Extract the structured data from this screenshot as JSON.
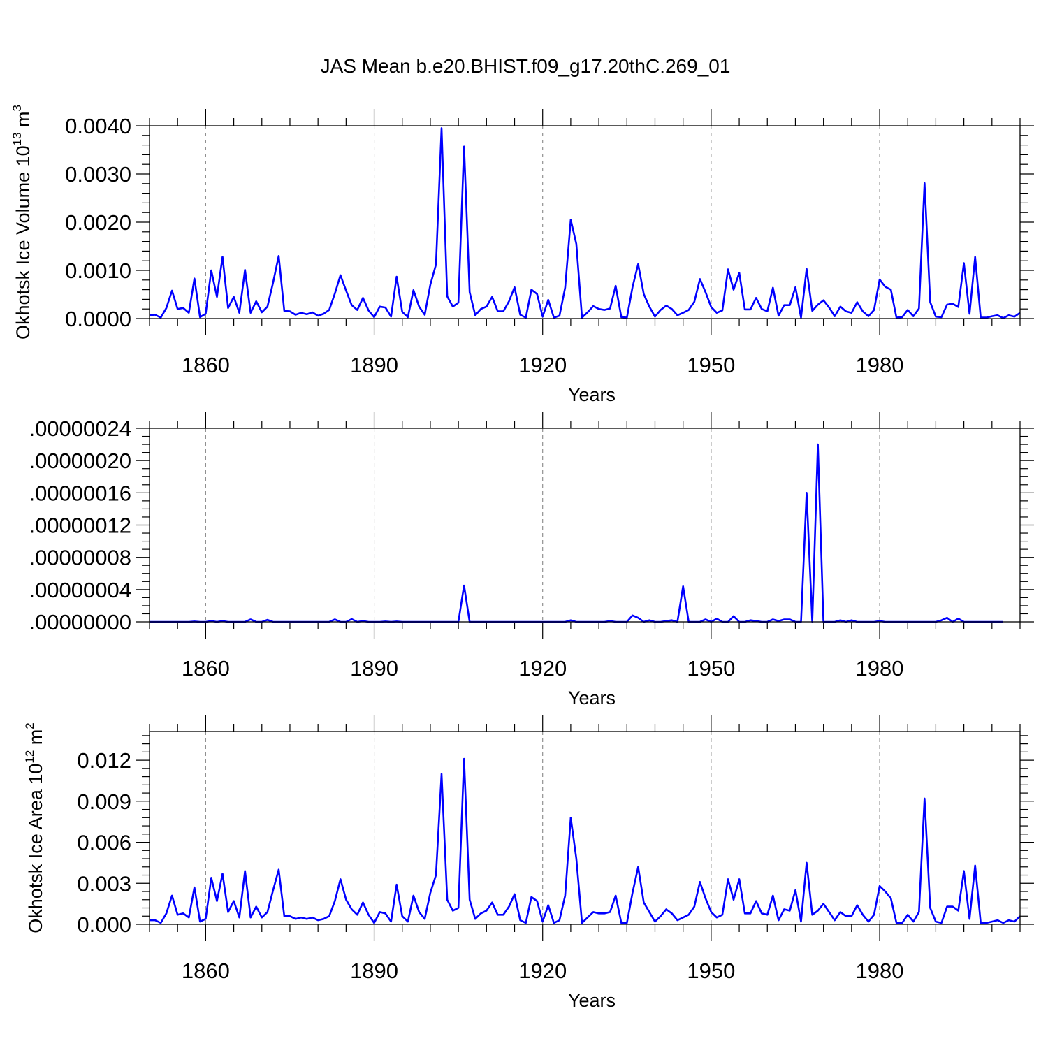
{
  "figure": {
    "title": "JAS Mean b.e20.BHIST.f09_g17.20thC.269_01"
  },
  "chart_data": [
    {
      "type": "line",
      "xlabel": "Years",
      "ylabel": "Okhotsk Ice Volume 10",
      "ylabel_sup": "13",
      "ylabel_unit": " m",
      "ylabel_unit_sup": "3",
      "xlim": [
        1850,
        2005
      ],
      "ylim": [
        0,
        0.004
      ],
      "x_ticks": [
        1860,
        1890,
        1920,
        1950,
        1980
      ],
      "y_ticks": [
        0,
        0.001,
        0.002,
        0.003,
        0.004
      ],
      "y_tick_labels": [
        "0.0000",
        "0.0010",
        "0.0020",
        "0.0030",
        "0.0040"
      ],
      "grid": "dashed vertical at major x ticks",
      "color": "#0000ff",
      "x_start": 1850,
      "values": [
        7e-05,
        8e-05,
        2e-05,
        0.00022,
        0.00058,
        0.0002,
        0.00022,
        0.00012,
        0.00083,
        3e-05,
        0.0001,
        0.001,
        0.00045,
        0.00128,
        0.00022,
        0.00045,
        0.00012,
        0.00101,
        0.00012,
        0.00036,
        0.00013,
        0.00025,
        0.00075,
        0.0013,
        0.00016,
        0.00015,
        8e-05,
        0.00012,
        9e-05,
        0.00013,
        6e-05,
        0.0001,
        0.00018,
        0.00052,
        0.0009,
        0.00058,
        0.00028,
        0.00018,
        0.00043,
        0.00017,
        3e-05,
        0.00025,
        0.00023,
        4e-05,
        0.00087,
        0.00014,
        3e-05,
        0.00059,
        0.00025,
        8e-05,
        0.0007,
        0.00112,
        0.00395,
        0.00046,
        0.00025,
        0.00033,
        0.00357,
        0.00055,
        7e-05,
        0.0002,
        0.00025,
        0.00045,
        0.00015,
        0.00015,
        0.00036,
        0.00065,
        8e-05,
        2e-05,
        0.0006,
        0.00051,
        4e-05,
        0.00039,
        2e-05,
        6e-05,
        0.00064,
        0.00205,
        0.00155,
        2e-05,
        0.00013,
        0.00026,
        0.0002,
        0.00018,
        0.00021,
        0.00068,
        3e-05,
        2e-05,
        0.00065,
        0.00113,
        0.00051,
        0.00025,
        4e-05,
        0.00018,
        0.00027,
        0.0002,
        7e-05,
        0.00012,
        0.00018,
        0.00035,
        0.00082,
        0.00055,
        0.00024,
        0.00012,
        0.00017,
        0.00102,
        0.0006,
        0.00095,
        0.00019,
        0.00019,
        0.00043,
        0.0002,
        0.00015,
        0.00064,
        6e-05,
        0.00028,
        0.00028,
        0.00065,
        2e-05,
        0.00103,
        0.00016,
        0.00029,
        0.00038,
        0.00023,
        5e-05,
        0.00025,
        0.00015,
        0.00012,
        0.00034,
        0.00015,
        5e-05,
        0.00018,
        0.00081,
        0.00066,
        0.0006,
        2e-05,
        3e-05,
        0.00018,
        5e-05,
        0.00021,
        0.00281,
        0.00034,
        4e-05,
        3e-05,
        0.00029,
        0.00031,
        0.00024,
        0.00115,
        0.0001,
        0.00128,
        2e-05,
        2e-05,
        5e-05,
        7e-05,
        1e-05,
        7e-05,
        4e-05,
        0.00012
      ]
    },
    {
      "type": "line",
      "xlabel": "Years",
      "ylabel": "",
      "xlim": [
        1850,
        2005
      ],
      "ylim": [
        0,
        2.4e-07
      ],
      "x_ticks": [
        1860,
        1890,
        1920,
        1950,
        1980
      ],
      "y_ticks": [
        0,
        4e-08,
        8e-08,
        1.2e-07,
        1.6e-07,
        2e-07,
        2.4e-07
      ],
      "y_tick_labels": [
        ".00000000",
        ".00000004",
        ".00000008",
        ".00000012",
        ".00000016",
        ".00000020",
        ".00000024"
      ],
      "grid": "dashed vertical at major x ticks",
      "color": "#0000ff",
      "x_start": 1850,
      "values": [
        0,
        0,
        0,
        0,
        0,
        0,
        0,
        0,
        5e-10,
        0,
        0,
        1e-09,
        0,
        1e-09,
        0,
        0,
        0,
        0,
        3e-09,
        0,
        0,
        2.5e-09,
        0,
        0,
        0,
        0,
        0,
        0,
        0,
        0,
        0,
        0,
        0,
        3e-09,
        0,
        0,
        3.5e-09,
        0,
        1e-09,
        0,
        0,
        0,
        5e-10,
        0,
        5e-10,
        0,
        0,
        0,
        0,
        0,
        0,
        0,
        0,
        0,
        0,
        0,
        4.5e-08,
        0,
        0,
        0,
        0,
        0,
        0,
        0,
        0,
        0,
        0,
        0,
        0,
        0,
        0,
        0,
        0,
        0,
        0,
        2e-09,
        0,
        0,
        0,
        0,
        0,
        0,
        1e-09,
        0,
        0,
        0,
        8e-09,
        5e-09,
        0,
        2e-09,
        0,
        0,
        1e-09,
        2e-09,
        0,
        4.4e-08,
        0,
        0,
        0,
        3e-09,
        0,
        4e-09,
        0,
        0,
        7e-09,
        0,
        0,
        2e-09,
        1e-09,
        0,
        0,
        3e-09,
        1e-09,
        3e-09,
        3e-09,
        0,
        0,
        1.6e-07,
        0,
        2.2e-07,
        0,
        0,
        0,
        2e-09,
        0,
        2e-09,
        0,
        0,
        0,
        0,
        1e-09,
        0,
        0,
        0,
        0,
        0,
        0,
        0,
        0,
        0,
        0,
        2e-09,
        5e-09,
        0,
        4e-09,
        0,
        0,
        0,
        0,
        0,
        0,
        0,
        0
      ]
    },
    {
      "type": "line",
      "xlabel": "Years",
      "ylabel": "Okhotsk Ice Area 10",
      "ylabel_sup": "12",
      "ylabel_unit": " m",
      "ylabel_unit_sup": "2",
      "xlim": [
        1850,
        2005
      ],
      "ylim": [
        0,
        0.0141
      ],
      "x_ticks": [
        1860,
        1890,
        1920,
        1950,
        1980
      ],
      "y_ticks": [
        0,
        0.003,
        0.006,
        0.009,
        0.012
      ],
      "y_tick_labels": [
        "0.000",
        "0.003",
        "0.006",
        "0.009",
        "0.012"
      ],
      "grid": "dashed vertical at major x ticks",
      "color": "#0000ff",
      "x_start": 1850,
      "values": [
        0.0003,
        0.0003,
        0.0001,
        0.0008,
        0.0021,
        0.0007,
        0.0008,
        0.0005,
        0.0027,
        0.0002,
        0.0004,
        0.0034,
        0.0017,
        0.0037,
        0.0009,
        0.0017,
        0.0005,
        0.0039,
        0.0005,
        0.0013,
        0.0005,
        0.0009,
        0.0025,
        0.004,
        0.0006,
        0.0006,
        0.0004,
        0.0005,
        0.0004,
        0.0005,
        0.0003,
        0.0004,
        0.0006,
        0.0017,
        0.0033,
        0.0018,
        0.0011,
        0.0007,
        0.0016,
        0.0007,
        0.0001,
        0.0009,
        0.0008,
        0.0002,
        0.0029,
        0.0006,
        0.0002,
        0.0021,
        0.0009,
        0.0004,
        0.0023,
        0.0036,
        0.011,
        0.0018,
        0.001,
        0.0012,
        0.0121,
        0.0018,
        0.0004,
        0.0008,
        0.001,
        0.0016,
        0.0007,
        0.0007,
        0.0013,
        0.0022,
        0.0003,
        0.0001,
        0.002,
        0.0017,
        0.0002,
        0.0014,
        0.0001,
        0.0003,
        0.0021,
        0.0078,
        0.0048,
        0.0001,
        0.0005,
        0.0009,
        0.0008,
        0.0008,
        0.0009,
        0.0021,
        0.0001,
        0.0001,
        0.0023,
        0.0042,
        0.0016,
        0.0009,
        0.0002,
        0.0006,
        0.0011,
        0.0008,
        0.0003,
        0.0005,
        0.0007,
        0.0013,
        0.0031,
        0.0019,
        0.0009,
        0.0005,
        0.0007,
        0.0033,
        0.0018,
        0.0033,
        0.0008,
        0.0008,
        0.0017,
        0.0008,
        0.0007,
        0.0021,
        0.0003,
        0.0011,
        0.001,
        0.0025,
        0.0002,
        0.0045,
        0.0007,
        0.001,
        0.0015,
        0.0009,
        0.0003,
        0.0009,
        0.0006,
        0.0006,
        0.0014,
        0.0007,
        0.0002,
        0.0007,
        0.0028,
        0.0024,
        0.0019,
        0.0001,
        0.0001,
        0.0007,
        0.0002,
        0.0009,
        0.0092,
        0.0012,
        0.0002,
        0.0001,
        0.0013,
        0.0013,
        0.001,
        0.0039,
        0.0004,
        0.0043,
        0.0001,
        0.0001,
        0.0002,
        0.0003,
        0.0001,
        0.0003,
        0.0002,
        0.0006
      ]
    }
  ]
}
